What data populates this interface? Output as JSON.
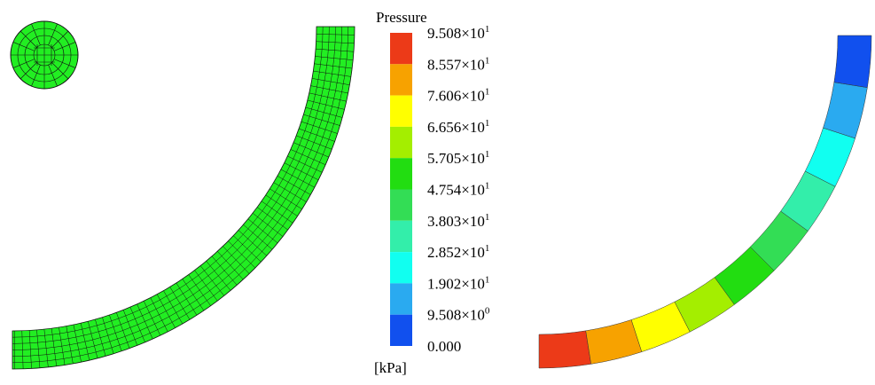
{
  "legend": {
    "title": "Pressure",
    "unit": "[kPa]",
    "ticks": [
      {
        "mantissa": "9.508×10",
        "exponent": "1"
      },
      {
        "mantissa": "8.557×10",
        "exponent": "1"
      },
      {
        "mantissa": "7.606×10",
        "exponent": "1"
      },
      {
        "mantissa": "6.656×10",
        "exponent": "1"
      },
      {
        "mantissa": "5.705×10",
        "exponent": "1"
      },
      {
        "mantissa": "4.754×10",
        "exponent": "1"
      },
      {
        "mantissa": "3.803×10",
        "exponent": "1"
      },
      {
        "mantissa": "2.852×10",
        "exponent": "1"
      },
      {
        "mantissa": "1.902×10",
        "exponent": "1"
      },
      {
        "mantissa": "9.508×10",
        "exponent": "0"
      },
      {
        "mantissa": "0.000"
      }
    ],
    "colors": [
      "#ec3a18",
      "#f7a200",
      "#ffff00",
      "#a4ee00",
      "#22dd11",
      "#33dd55",
      "#33eeaa",
      "#11fff0",
      "#2aaaf0",
      "#1150ee"
    ]
  }
}
